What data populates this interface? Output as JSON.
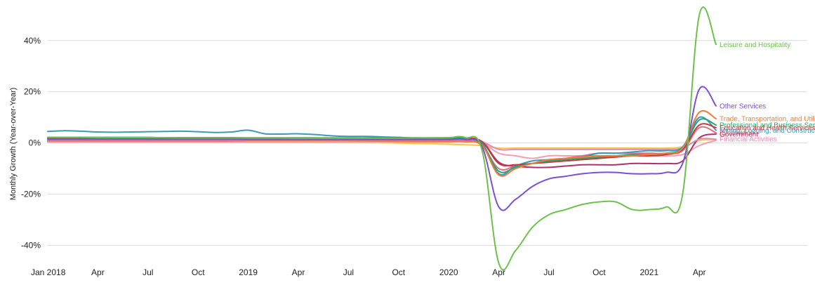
{
  "chart_data": {
    "type": "line",
    "title": "",
    "xlabel": "",
    "ylabel": "Monthly Growth (Year-over-Year)",
    "grid": "horizontal",
    "ylim": [
      -47.5,
      52
    ],
    "xlim": [
      "2018-01",
      "2021-05"
    ],
    "y_ticks": [
      {
        "value": 40,
        "label": "40%"
      },
      {
        "value": 20,
        "label": "20%"
      },
      {
        "value": 0,
        "label": "0%"
      },
      {
        "value": -20,
        "label": "-20%"
      },
      {
        "value": -40,
        "label": "-40%"
      }
    ],
    "x_ticks": [
      {
        "value": "2018-01",
        "label": "Jan 2018"
      },
      {
        "value": "2018-04",
        "label": "Apr"
      },
      {
        "value": "2018-07",
        "label": "Jul"
      },
      {
        "value": "2018-10",
        "label": "Oct"
      },
      {
        "value": "2019-01",
        "label": "2019"
      },
      {
        "value": "2019-04",
        "label": "Apr"
      },
      {
        "value": "2019-07",
        "label": "Jul"
      },
      {
        "value": "2019-10",
        "label": "Oct"
      },
      {
        "value": "2020-01",
        "label": "2020"
      },
      {
        "value": "2020-04",
        "label": "Apr"
      },
      {
        "value": "2020-07",
        "label": "Jul"
      },
      {
        "value": "2020-10",
        "label": "Oct"
      },
      {
        "value": "2021-01",
        "label": "2021"
      },
      {
        "value": "2021-04",
        "label": "Apr"
      }
    ],
    "x": [
      "2018-01",
      "2018-02",
      "2018-03",
      "2018-04",
      "2018-05",
      "2018-06",
      "2018-07",
      "2018-08",
      "2018-09",
      "2018-10",
      "2018-11",
      "2018-12",
      "2019-01",
      "2019-02",
      "2019-03",
      "2019-04",
      "2019-05",
      "2019-06",
      "2019-07",
      "2019-08",
      "2019-09",
      "2019-10",
      "2019-11",
      "2019-12",
      "2020-01",
      "2020-02",
      "2020-03",
      "2020-04",
      "2020-05",
      "2020-06",
      "2020-07",
      "2020-08",
      "2020-09",
      "2020-10",
      "2020-11",
      "2020-12",
      "2021-01",
      "2021-02",
      "2021-03",
      "2021-04",
      "2021-05"
    ],
    "series": [
      {
        "name": "Leisure and Hospitality",
        "color": "#6cc24a",
        "values": [
          2.2,
          2.2,
          2.2,
          2.1,
          2.1,
          2.1,
          2.1,
          2.1,
          2.0,
          2.0,
          2.0,
          2.0,
          2.0,
          2.0,
          2.0,
          1.9,
          1.9,
          1.9,
          1.9,
          1.9,
          1.9,
          1.9,
          2.0,
          2.0,
          2.1,
          2.1,
          -3,
          -47,
          -42,
          -33,
          -28,
          -26,
          -24,
          -23,
          -23,
          -26,
          -26,
          -25,
          -20,
          50,
          38.5
        ]
      },
      {
        "name": "Other Services",
        "color": "#7b4fd6",
        "values": [
          1.5,
          1.5,
          1.5,
          1.5,
          1.5,
          1.5,
          1.5,
          1.5,
          1.5,
          1.5,
          1.5,
          1.5,
          1.4,
          1.4,
          1.4,
          1.4,
          1.4,
          1.4,
          1.4,
          1.4,
          1.4,
          1.4,
          1.4,
          1.4,
          1.4,
          1.4,
          -1.5,
          -25,
          -22,
          -17,
          -14,
          -13,
          -12,
          -11.5,
          -11.5,
          -12,
          -12,
          -11.5,
          -8,
          21,
          14.5
        ]
      },
      {
        "name": "Trade, Transportation, and Utilities",
        "color": "#f07c3a",
        "values": [
          1.2,
          1.2,
          1.2,
          1.2,
          1.2,
          1.2,
          1.2,
          1.2,
          1.2,
          1.2,
          1.2,
          1.2,
          1.1,
          1.1,
          1.0,
          1.0,
          1.0,
          0.9,
          0.9,
          0.8,
          0.7,
          0.6,
          0.5,
          0.5,
          0.5,
          0.5,
          -1,
          -12.5,
          -10,
          -8,
          -6.5,
          -6,
          -5.5,
          -5,
          -5,
          -5,
          -4.5,
          -4,
          -2,
          12,
          9.5
        ]
      },
      {
        "name": "Professional and Business Services",
        "color": "#27a47a",
        "values": [
          2.2,
          2.2,
          2.2,
          2.2,
          2.2,
          2.2,
          2.2,
          2.1,
          2.1,
          2.1,
          2.1,
          2.1,
          2.0,
          2.0,
          2.0,
          2.0,
          2.0,
          1.9,
          1.9,
          1.9,
          1.9,
          1.8,
          1.8,
          1.8,
          1.8,
          1.7,
          -0.5,
          -11,
          -9.5,
          -8,
          -7,
          -6.5,
          -6,
          -5.5,
          -5,
          -4.5,
          -4.5,
          -4,
          -2,
          9,
          7
        ]
      },
      {
        "name": "Education and Health Services",
        "color": "#c63a3a",
        "values": [
          2.0,
          2.0,
          2.0,
          2.0,
          2.0,
          2.0,
          2.0,
          2.0,
          2.0,
          2.0,
          2.0,
          2.0,
          2.0,
          2.0,
          2.0,
          2.0,
          2.0,
          2.0,
          2.0,
          2.0,
          2.0,
          2.0,
          2.0,
          2.0,
          2.0,
          2.0,
          0.5,
          -8,
          -8.5,
          -8,
          -7.5,
          -7,
          -6.5,
          -6,
          -5.5,
          -5,
          -5,
          -4.5,
          -2.5,
          7,
          6
        ]
      },
      {
        "name": "Mining, Logging, and Construction",
        "color": "#3a9ab8",
        "values": [
          4.5,
          4.8,
          4.6,
          4.3,
          4.2,
          4.3,
          4.4,
          4.5,
          4.6,
          4.4,
          4.1,
          4.3,
          5.0,
          3.6,
          3.5,
          3.6,
          3.3,
          2.8,
          2.6,
          2.6,
          2.4,
          2.2,
          2.0,
          2.0,
          2.0,
          2.0,
          0,
          -12,
          -9,
          -7,
          -6.5,
          -6,
          -5.5,
          -4,
          -4,
          -3.5,
          -3,
          -3,
          -1.5,
          10,
          5
        ]
      },
      {
        "name": "Information",
        "color": "#e07080",
        "values": [
          0.8,
          0.8,
          0.8,
          0.8,
          0.8,
          0.8,
          0.8,
          0.8,
          0.8,
          0.8,
          0.8,
          0.8,
          0.9,
          0.9,
          0.9,
          0.9,
          0.9,
          0.9,
          0.9,
          0.9,
          1.0,
          1.0,
          1.0,
          1.0,
          1.0,
          1.0,
          -1,
          -10,
          -9,
          -8,
          -7,
          -6,
          -5,
          -4,
          -4,
          -4,
          -4,
          -4,
          -3,
          6,
          4
        ]
      },
      {
        "name": "Financial Activities",
        "color": "#e28bb8",
        "values": [
          1.8,
          1.8,
          1.8,
          1.8,
          1.8,
          1.8,
          1.8,
          1.8,
          1.8,
          1.8,
          1.8,
          1.8,
          1.8,
          1.8,
          1.8,
          1.8,
          1.8,
          1.8,
          1.8,
          1.8,
          1.8,
          1.8,
          1.8,
          1.8,
          1.7,
          1.6,
          0.5,
          -2.5,
          -2.5,
          -2.5,
          -2.5,
          -2.5,
          -2.5,
          -2.5,
          -2.5,
          -2.5,
          -2.5,
          -2.5,
          -2,
          1.5,
          1.5
        ]
      },
      {
        "name": "Government",
        "color": "#b0306a",
        "values": [
          0.9,
          0.9,
          0.9,
          0.9,
          0.9,
          0.9,
          0.9,
          0.9,
          0.9,
          0.9,
          0.9,
          0.9,
          1.0,
          1.0,
          1.0,
          1.0,
          1.0,
          1.0,
          1.0,
          1.0,
          1.0,
          1.0,
          1.0,
          1.0,
          1.0,
          1.0,
          0.5,
          -7.5,
          -9,
          -9.5,
          -9.5,
          -9,
          -8.5,
          -8.5,
          -8.5,
          -8,
          -8,
          -8,
          -7,
          2,
          3.5
        ]
      },
      {
        "name": "",
        "color": "#f2a0b0",
        "values": [
          0.4,
          0.4,
          0.4,
          0.4,
          0.4,
          0.4,
          0.4,
          0.4,
          0.4,
          0.4,
          0.4,
          0.4,
          0.5,
          0.5,
          0.5,
          0.5,
          0.5,
          0.5,
          0.5,
          0.5,
          0.5,
          0.5,
          0.5,
          0.5,
          0.5,
          0.5,
          0,
          -4,
          -5,
          -6,
          -5,
          -5,
          -5,
          -5,
          -5,
          -5,
          -5,
          -5,
          -4.5,
          -1,
          1.0
        ]
      },
      {
        "name": "",
        "color": "#f3c84a",
        "values": [
          0.3,
          0.3,
          0.3,
          0.3,
          0.3,
          0.3,
          0.3,
          0.3,
          0.3,
          0.3,
          0.3,
          0.3,
          0.2,
          0.2,
          0.2,
          0.2,
          0.2,
          0.2,
          0.2,
          0.2,
          0.1,
          0,
          -0.2,
          -0.3,
          -0.5,
          -0.7,
          -1,
          -2,
          -2,
          -2,
          -2,
          -2,
          -2,
          -2,
          -2,
          -2,
          -2,
          -2,
          -1.5,
          1,
          1.2
        ]
      }
    ]
  }
}
